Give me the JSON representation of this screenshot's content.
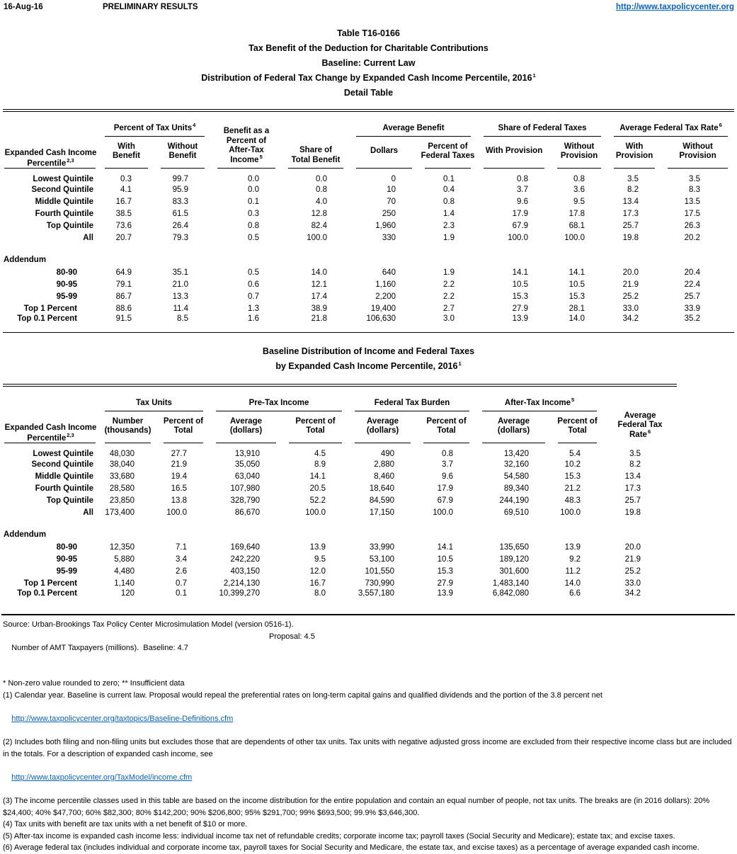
{
  "header": {
    "date": "16-Aug-16",
    "status": "PRELIMINARY RESULTS",
    "url": "http://www.taxpolicycenter.org"
  },
  "title": {
    "line1": "Table T16-0166",
    "line2": "Tax Benefit of the Deduction for Charitable Contributions",
    "line3": "Baseline: Current Law",
    "line4": "Distribution of Federal Tax Change by Expanded Cash Income Percentile, 2016",
    "line4_sup": "1",
    "line5": "Detail Table"
  },
  "table1": {
    "header": {
      "row_label_line1": "Expanded Cash Income",
      "row_label_line2": "Percentile",
      "row_label_sup": "2,3",
      "pct_tax_units": "Percent of Tax Units",
      "pct_tax_units_sup": "4",
      "with_benefit": "With\nBenefit",
      "without_benefit": "Without\nBenefit",
      "benefit_pct_ati": "Benefit as a\nPercent of\nAfter-Tax\nIncome",
      "benefit_pct_ati_sup": "5",
      "share_total_benefit": "Share of\nTotal Benefit",
      "average_benefit": "Average Benefit",
      "dollars": "Dollars",
      "pct_federal_taxes": "Percent of\nFederal Taxes",
      "share_federal_taxes": "Share of Federal Taxes",
      "with_provision": "With Provision",
      "without_provision": "Without\nProvision",
      "avg_federal_tax_rate": "Average Federal Tax Rate",
      "avg_federal_tax_rate_sup": "6",
      "rate_with_provision": "With\nProvision",
      "rate_without_provision": "Without\nProvision"
    },
    "main_rows": [
      [
        "Lowest Quintile",
        "0.3",
        "99.7",
        "0.0",
        "0.0",
        "0",
        "0.1",
        "0.8",
        "0.8",
        "3.5",
        "3.5"
      ],
      [
        "Second Quintile",
        "4.1",
        "95.9",
        "0.0",
        "0.8",
        "10",
        "0.4",
        "3.7",
        "3.6",
        "8.2",
        "8.3"
      ],
      [
        "Middle Quintile",
        "16.7",
        "83.3",
        "0.1",
        "4.0",
        "70",
        "0.8",
        "9.6",
        "9.5",
        "13.4",
        "13.5"
      ],
      [
        "Fourth Quintile",
        "38.5",
        "61.5",
        "0.3",
        "12.8",
        "250",
        "1.4",
        "17.9",
        "17.8",
        "17.3",
        "17.5"
      ],
      [
        "Top Quintile",
        "73.6",
        "26.4",
        "0.8",
        "82.4",
        "1,960",
        "2.3",
        "67.9",
        "68.1",
        "25.7",
        "26.3"
      ],
      [
        "All",
        "20.7",
        "79.3",
        "0.5",
        "100.0",
        "330",
        "1.9",
        "100.0",
        "100.0",
        "19.8",
        "20.2"
      ]
    ],
    "addendum_label": "Addendum",
    "addendum_rows": [
      [
        "80-90",
        "64.9",
        "35.1",
        "0.5",
        "14.0",
        "640",
        "1.9",
        "14.1",
        "14.1",
        "20.0",
        "20.4"
      ],
      [
        "90-95",
        "79.1",
        "21.0",
        "0.6",
        "12.1",
        "1,160",
        "2.2",
        "10.5",
        "10.5",
        "21.9",
        "22.4"
      ],
      [
        "95-99",
        "86.7",
        "13.3",
        "0.7",
        "17.4",
        "2,200",
        "2.2",
        "15.3",
        "15.3",
        "25.2",
        "25.7"
      ],
      [
        "Top 1 Percent",
        "88.6",
        "11.4",
        "1.3",
        "38.9",
        "19,400",
        "2.7",
        "27.9",
        "28.1",
        "33.0",
        "33.9"
      ],
      [
        "Top 0.1 Percent",
        "91.5",
        "8.5",
        "1.6",
        "21.8",
        "106,630",
        "3.0",
        "13.9",
        "14.0",
        "34.2",
        "35.2"
      ]
    ]
  },
  "table2_title": {
    "line1": "Baseline Distribution of Income and Federal Taxes",
    "line2": "by Expanded Cash Income Percentile, 2016",
    "line2_sup": "1"
  },
  "table2": {
    "header": {
      "row_label_line1": "Expanded Cash Income",
      "row_label_line2": "Percentile",
      "row_label_sup": "2,3",
      "tax_units": "Tax Units",
      "number_thousands": "Number\n(thousands)",
      "percent_of_total": "Percent of\nTotal",
      "pre_tax_income": "Pre-Tax Income",
      "average_dollars": "Average\n(dollars)",
      "federal_tax_burden": "Federal Tax Burden",
      "after_tax_income": "After-Tax Income",
      "after_tax_income_sup": "5",
      "avg_federal_tax_rate": "Average\nFederal Tax\nRate",
      "avg_federal_tax_rate_sup": "6"
    },
    "main_rows": [
      [
        "Lowest Quintile",
        "48,030",
        "27.7",
        "13,910",
        "4.5",
        "490",
        "0.8",
        "13,420",
        "5.4",
        "3.5"
      ],
      [
        "Second Quintile",
        "38,040",
        "21.9",
        "35,050",
        "8.9",
        "2,880",
        "3.7",
        "32,160",
        "10.2",
        "8.2"
      ],
      [
        "Middle Quintile",
        "33,680",
        "19.4",
        "63,040",
        "14.1",
        "8,460",
        "9.6",
        "54,580",
        "15.3",
        "13.4"
      ],
      [
        "Fourth Quintile",
        "28,580",
        "16.5",
        "107,980",
        "20.5",
        "18,640",
        "17.9",
        "89,340",
        "21.2",
        "17.3"
      ],
      [
        "Top Quintile",
        "23,850",
        "13.8",
        "328,790",
        "52.2",
        "84,590",
        "67.9",
        "244,190",
        "48.3",
        "25.7"
      ],
      [
        "All",
        "173,400",
        "100.0",
        "86,670",
        "100.0",
        "17,150",
        "100.0",
        "69,510",
        "100.0",
        "19.8"
      ]
    ],
    "addendum_label": "Addendum",
    "addendum_rows": [
      [
        "80-90",
        "12,350",
        "7.1",
        "169,640",
        "13.9",
        "33,990",
        "14.1",
        "135,650",
        "13.9",
        "20.0"
      ],
      [
        "90-95",
        "5,880",
        "3.4",
        "242,220",
        "9.5",
        "53,100",
        "10.5",
        "189,120",
        "9.2",
        "21.9"
      ],
      [
        "95-99",
        "4,480",
        "2.6",
        "403,150",
        "12.0",
        "101,550",
        "15.3",
        "301,600",
        "11.2",
        "25.2"
      ],
      [
        "Top 1 Percent",
        "1,140",
        "0.7",
        "2,214,130",
        "16.7",
        "730,990",
        "27.9",
        "1,483,140",
        "14.0",
        "33.0"
      ],
      [
        "Top 0.1 Percent",
        "120",
        "0.1",
        "10,399,270",
        "8.0",
        "3,557,180",
        "13.9",
        "6,842,080",
        "6.6",
        "34.2"
      ]
    ]
  },
  "footnotes": {
    "source": "Source: Urban-Brookings Tax Policy Center Microsimulation Model (version 0516-1).",
    "amt_line": "Number of AMT Taxpayers (millions).  Baseline: 4.7",
    "amt_proposal": "Proposal: 4.5",
    "asterisk": "* Non-zero value rounded to zero; ** Insufficient data",
    "fn1": "(1) Calendar year. Baseline is current law. Proposal would repeal the preferential rates on long-term capital gains and qualified dividends and the portion of the 3.8 percent net",
    "fn1_link": "http://www.taxpolicycenter.org/taxtopics/Baseline-Definitions.cfm",
    "fn2": "(2) Includes both filing and non-filing units but excludes those that are dependents of other tax units. Tax units with negative adjusted gross income are excluded from their respective income class but are included in the totals. For a description of expanded cash income, see",
    "fn2_link": "http://www.taxpolicycenter.org/TaxModel/income.cfm",
    "fn3": "(3) The income percentile classes used in this table are based on the income distribution for the entire population and contain an equal number of people, not tax units. The breaks are (in 2016 dollars): 20% $24,400; 40% $47,700; 60% $82,300; 80% $142,200; 90% $206,800; 95% $291,700; 99% $693,500; 99.9% $3,646,300.",
    "fn4": "(4) Tax units with benefit are tax units with a net benefit of $10 or more.",
    "fn5": "(5) After-tax income is expanded cash income less: individual income tax net of refundable credits; corporate income tax; payroll taxes (Social Security and Medicare); estate tax; and excise taxes.",
    "fn6": "(6) Average federal tax (includes individual and corporate income tax, payroll taxes for Social Security and Medicare, the estate tax, and excise taxes) as a percentage of average expanded cash income."
  }
}
